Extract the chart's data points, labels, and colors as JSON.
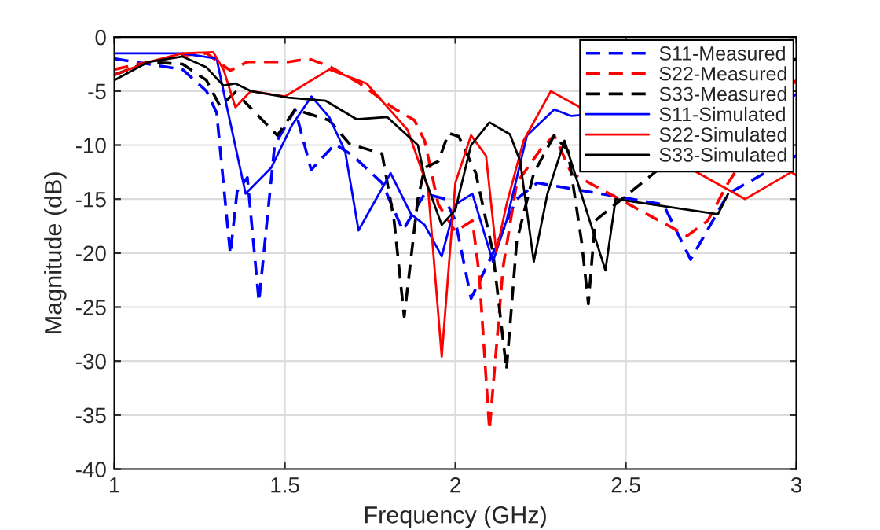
{
  "chart_data": {
    "type": "line",
    "xlabel": "Frequency (GHz)",
    "ylabel": "Magnitude (dB)",
    "xlim": [
      1,
      3
    ],
    "ylim": [
      -40,
      0
    ],
    "xticks": [
      1,
      1.5,
      2,
      2.5,
      3
    ],
    "yticks": [
      -40,
      -35,
      -30,
      -25,
      -20,
      -15,
      -10,
      -5,
      0
    ],
    "grid": true,
    "legend": "top right",
    "marker": "none",
    "series": [
      {
        "name": "S11-Measured",
        "color": "#0000ff",
        "line_style": "dashed",
        "x": [
          1.0,
          1.1,
          1.2,
          1.27,
          1.3,
          1.34,
          1.36,
          1.39,
          1.424,
          1.47,
          1.53,
          1.577,
          1.647,
          1.7,
          1.785,
          1.846,
          1.91,
          1.97,
          2.0,
          2.046,
          2.106,
          2.18,
          2.24,
          2.3,
          2.61,
          2.69,
          2.8,
          2.9,
          2.985,
          3.0
        ],
        "values": [
          -2,
          -2.5,
          -3,
          -5,
          -7,
          -20.1,
          -14.3,
          -13,
          -24.5,
          -10,
          -6.7,
          -12.3,
          -9.9,
          -11,
          -13.5,
          -17.9,
          -14.5,
          -15,
          -17,
          -24.2,
          -20.3,
          -15,
          -13.5,
          null,
          -15.5,
          -20.6,
          -14.5,
          null,
          -11.2,
          -11
        ]
      },
      {
        "name": "S22-Measured",
        "color": "#ff0000",
        "line_style": "dashed",
        "x": [
          1.0,
          1.07,
          1.2,
          1.27,
          1.34,
          1.39,
          1.51,
          1.57,
          1.63,
          1.72,
          1.82,
          1.88,
          1.91,
          1.95,
          2.0,
          2.05,
          2.07,
          2.1,
          2.14,
          2.18,
          2.25,
          2.29,
          2.34,
          2.4,
          2.68,
          2.74,
          2.8,
          2.9,
          2.985,
          3.0
        ],
        "values": [
          -3,
          -2.5,
          -1.7,
          -1.5,
          -3.1,
          -2.3,
          -2.3,
          -2,
          -2.7,
          -4.3,
          -6.6,
          -7.7,
          -9.6,
          -15.5,
          -18,
          -17,
          -22,
          -36.4,
          -21.3,
          -13.5,
          -10.4,
          -9.1,
          -12.6,
          null,
          -18.4,
          -17,
          -13.5,
          null,
          -4.5,
          -4
        ]
      },
      {
        "name": "S33-Measured",
        "color": "#000000",
        "line_style": "dashed",
        "x": [
          1.0,
          1.1,
          1.2,
          1.27,
          1.31,
          1.355,
          1.478,
          1.53,
          1.63,
          1.69,
          1.785,
          1.82,
          1.85,
          1.89,
          1.91,
          1.95,
          1.98,
          2.01,
          2.06,
          2.11,
          2.15,
          2.18,
          2.23,
          2.29,
          2.33,
          2.37,
          2.39,
          2.41,
          2.5,
          2.985,
          3.0
        ],
        "values": [
          -3.5,
          -2.3,
          -2.5,
          -4,
          -6.4,
          -5.1,
          -9.1,
          -6.7,
          -7.7,
          -9.9,
          -10.8,
          -16.9,
          -25.9,
          -15,
          -12.1,
          -11.5,
          -8.9,
          -9.2,
          -12.6,
          -19.9,
          -30.8,
          -18.9,
          -12.6,
          -9.1,
          -10.5,
          -18.9,
          -24.7,
          -17,
          null,
          -2.3,
          -2
        ]
      },
      {
        "name": "S11-Simulated",
        "color": "#0000ff",
        "line_style": "solid",
        "x": [
          1.0,
          1.2,
          1.3,
          1.32,
          1.385,
          1.46,
          1.52,
          1.578,
          1.63,
          1.677,
          1.716,
          1.81,
          1.87,
          1.91,
          1.96,
          2.0,
          2.05,
          2.11,
          2.15,
          2.21,
          2.29,
          2.34,
          2.5,
          2.985,
          3.0
        ],
        "values": [
          -1.5,
          -1.5,
          -2,
          -5,
          -14.5,
          -12.1,
          -8.2,
          -5.5,
          -7.4,
          -10.6,
          -17.9,
          -12.6,
          -16.4,
          -17.4,
          -20.3,
          -15.5,
          -14.5,
          -20.8,
          -17,
          -9.1,
          -6.7,
          -7.3,
          null,
          -5.6,
          -5.3
        ]
      },
      {
        "name": "S22-Simulated",
        "color": "#ff0000",
        "line_style": "solid",
        "x": [
          1.0,
          1.1,
          1.2,
          1.29,
          1.32,
          1.355,
          1.4,
          1.5,
          1.63,
          1.74,
          1.86,
          1.92,
          1.96,
          2.0,
          2.046,
          2.09,
          2.12,
          2.15,
          2.2,
          2.28,
          2.32,
          2.5,
          2.85,
          2.9,
          2.985,
          3.0
        ],
        "values": [
          -3.5,
          -2.3,
          -1.5,
          -1.4,
          -3,
          -6.5,
          -5,
          -5.5,
          -3,
          -4.3,
          -8.6,
          -14,
          -29.6,
          -13.5,
          -9.1,
          -11,
          -19.9,
          -15.5,
          -9.6,
          -5,
          -5.7,
          null,
          -15,
          null,
          -12.5,
          -12.8
        ]
      },
      {
        "name": "S33-Simulated",
        "color": "#000000",
        "line_style": "solid",
        "x": [
          1.0,
          1.1,
          1.2,
          1.27,
          1.32,
          1.355,
          1.4,
          1.51,
          1.62,
          1.71,
          1.8,
          1.89,
          1.91,
          1.96,
          2.0,
          2.046,
          2.1,
          2.16,
          2.19,
          2.23,
          2.27,
          2.32,
          2.36,
          2.4,
          2.44,
          2.47,
          2.6,
          2.77,
          2.8
        ],
        "values": [
          -4,
          -2.3,
          -1.8,
          -2.8,
          -4.5,
          -4.3,
          -5,
          -5.6,
          -5.9,
          -7.6,
          -7.4,
          -10,
          -13,
          -17.4,
          -16,
          -10,
          -7.9,
          -9,
          -11.5,
          -20.8,
          -14.5,
          -9.6,
          null,
          null,
          -21.6,
          -15,
          null,
          -16.4,
          -14.5
        ]
      }
    ]
  }
}
